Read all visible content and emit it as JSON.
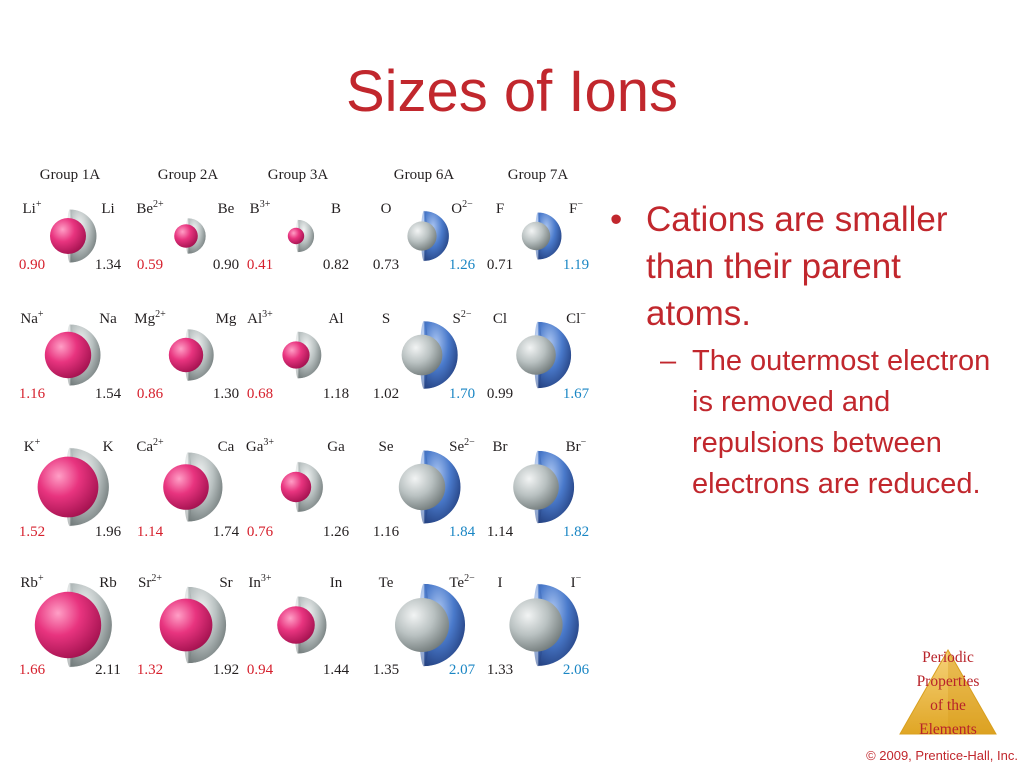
{
  "title": "Sizes of Ions",
  "diagram": {
    "groups": [
      "Group 1A",
      "Group 2A",
      "Group 3A",
      "Group 6A",
      "Group 7A"
    ],
    "rows": [
      [
        {
          "ion": "Li",
          "ion_charge": "+",
          "atom": "Li",
          "ion_radius": 0.9,
          "atom_radius": 1.34,
          "ion_type": "cation"
        },
        {
          "ion": "Be",
          "ion_charge": "2+",
          "atom": "Be",
          "ion_radius": 0.59,
          "atom_radius": 0.9,
          "ion_type": "cation"
        },
        {
          "ion": "B",
          "ion_charge": "3+",
          "atom": "B",
          "ion_radius": 0.41,
          "atom_radius": 0.82,
          "ion_type": "cation"
        },
        {
          "ion": "O",
          "ion_charge": "2−",
          "atom": "O",
          "ion_radius": 1.26,
          "atom_radius": 0.73,
          "ion_type": "anion"
        },
        {
          "ion": "F",
          "ion_charge": "−",
          "atom": "F",
          "ion_radius": 1.19,
          "atom_radius": 0.71,
          "ion_type": "anion"
        }
      ],
      [
        {
          "ion": "Na",
          "ion_charge": "+",
          "atom": "Na",
          "ion_radius": 1.16,
          "atom_radius": 1.54,
          "ion_type": "cation"
        },
        {
          "ion": "Mg",
          "ion_charge": "2+",
          "atom": "Mg",
          "ion_radius": 0.86,
          "atom_radius": 1.3,
          "ion_type": "cation"
        },
        {
          "ion": "Al",
          "ion_charge": "3+",
          "atom": "Al",
          "ion_radius": 0.68,
          "atom_radius": 1.18,
          "ion_type": "cation"
        },
        {
          "ion": "S",
          "ion_charge": "2−",
          "atom": "S",
          "ion_radius": 1.7,
          "atom_radius": 1.02,
          "ion_type": "anion"
        },
        {
          "ion": "Cl",
          "ion_charge": "−",
          "atom": "Cl",
          "ion_radius": 1.67,
          "atom_radius": 0.99,
          "ion_type": "anion"
        }
      ],
      [
        {
          "ion": "K",
          "ion_charge": "+",
          "atom": "K",
          "ion_radius": 1.52,
          "atom_radius": 1.96,
          "ion_type": "cation"
        },
        {
          "ion": "Ca",
          "ion_charge": "2+",
          "atom": "Ca",
          "ion_radius": 1.14,
          "atom_radius": 1.74,
          "ion_type": "cation"
        },
        {
          "ion": "Ga",
          "ion_charge": "3+",
          "atom": "Ga",
          "ion_radius": 0.76,
          "atom_radius": 1.26,
          "ion_type": "cation"
        },
        {
          "ion": "Se",
          "ion_charge": "2−",
          "atom": "Se",
          "ion_radius": 1.84,
          "atom_radius": 1.16,
          "ion_type": "anion"
        },
        {
          "ion": "Br",
          "ion_charge": "−",
          "atom": "Br",
          "ion_radius": 1.82,
          "atom_radius": 1.14,
          "ion_type": "anion"
        }
      ],
      [
        {
          "ion": "Rb",
          "ion_charge": "+",
          "atom": "Rb",
          "ion_radius": 1.66,
          "atom_radius": 2.11,
          "ion_type": "cation"
        },
        {
          "ion": "Sr",
          "ion_charge": "2+",
          "atom": "Sr",
          "ion_radius": 1.32,
          "atom_radius": 1.92,
          "ion_type": "cation"
        },
        {
          "ion": "In",
          "ion_charge": "3+",
          "atom": "In",
          "ion_radius": 0.94,
          "atom_radius": 1.44,
          "ion_type": "cation"
        },
        {
          "ion": "Te",
          "ion_charge": "2−",
          "atom": "Te",
          "ion_radius": 2.07,
          "atom_radius": 1.35,
          "ion_type": "anion"
        },
        {
          "ion": "I",
          "ion_charge": "−",
          "atom": "I",
          "ion_radius": 2.06,
          "atom_radius": 1.33,
          "ion_type": "anion"
        }
      ]
    ],
    "colors": {
      "cation": "#e5307a",
      "atom": "#b9c1c1",
      "anion": "#4a7acb",
      "cation_label": "#d6202d",
      "anion_label": "#1a86c4",
      "text": "#231f20"
    }
  },
  "bullets": {
    "main": "Cations are smaller than their parent atoms.",
    "sub": "The outermost electron is removed and repulsions between electrons are reduced."
  },
  "logo": {
    "lines": [
      "Periodic",
      "Properties",
      "of the",
      "Elements"
    ]
  },
  "copyright": "© 2009, Prentice-Hall, Inc."
}
